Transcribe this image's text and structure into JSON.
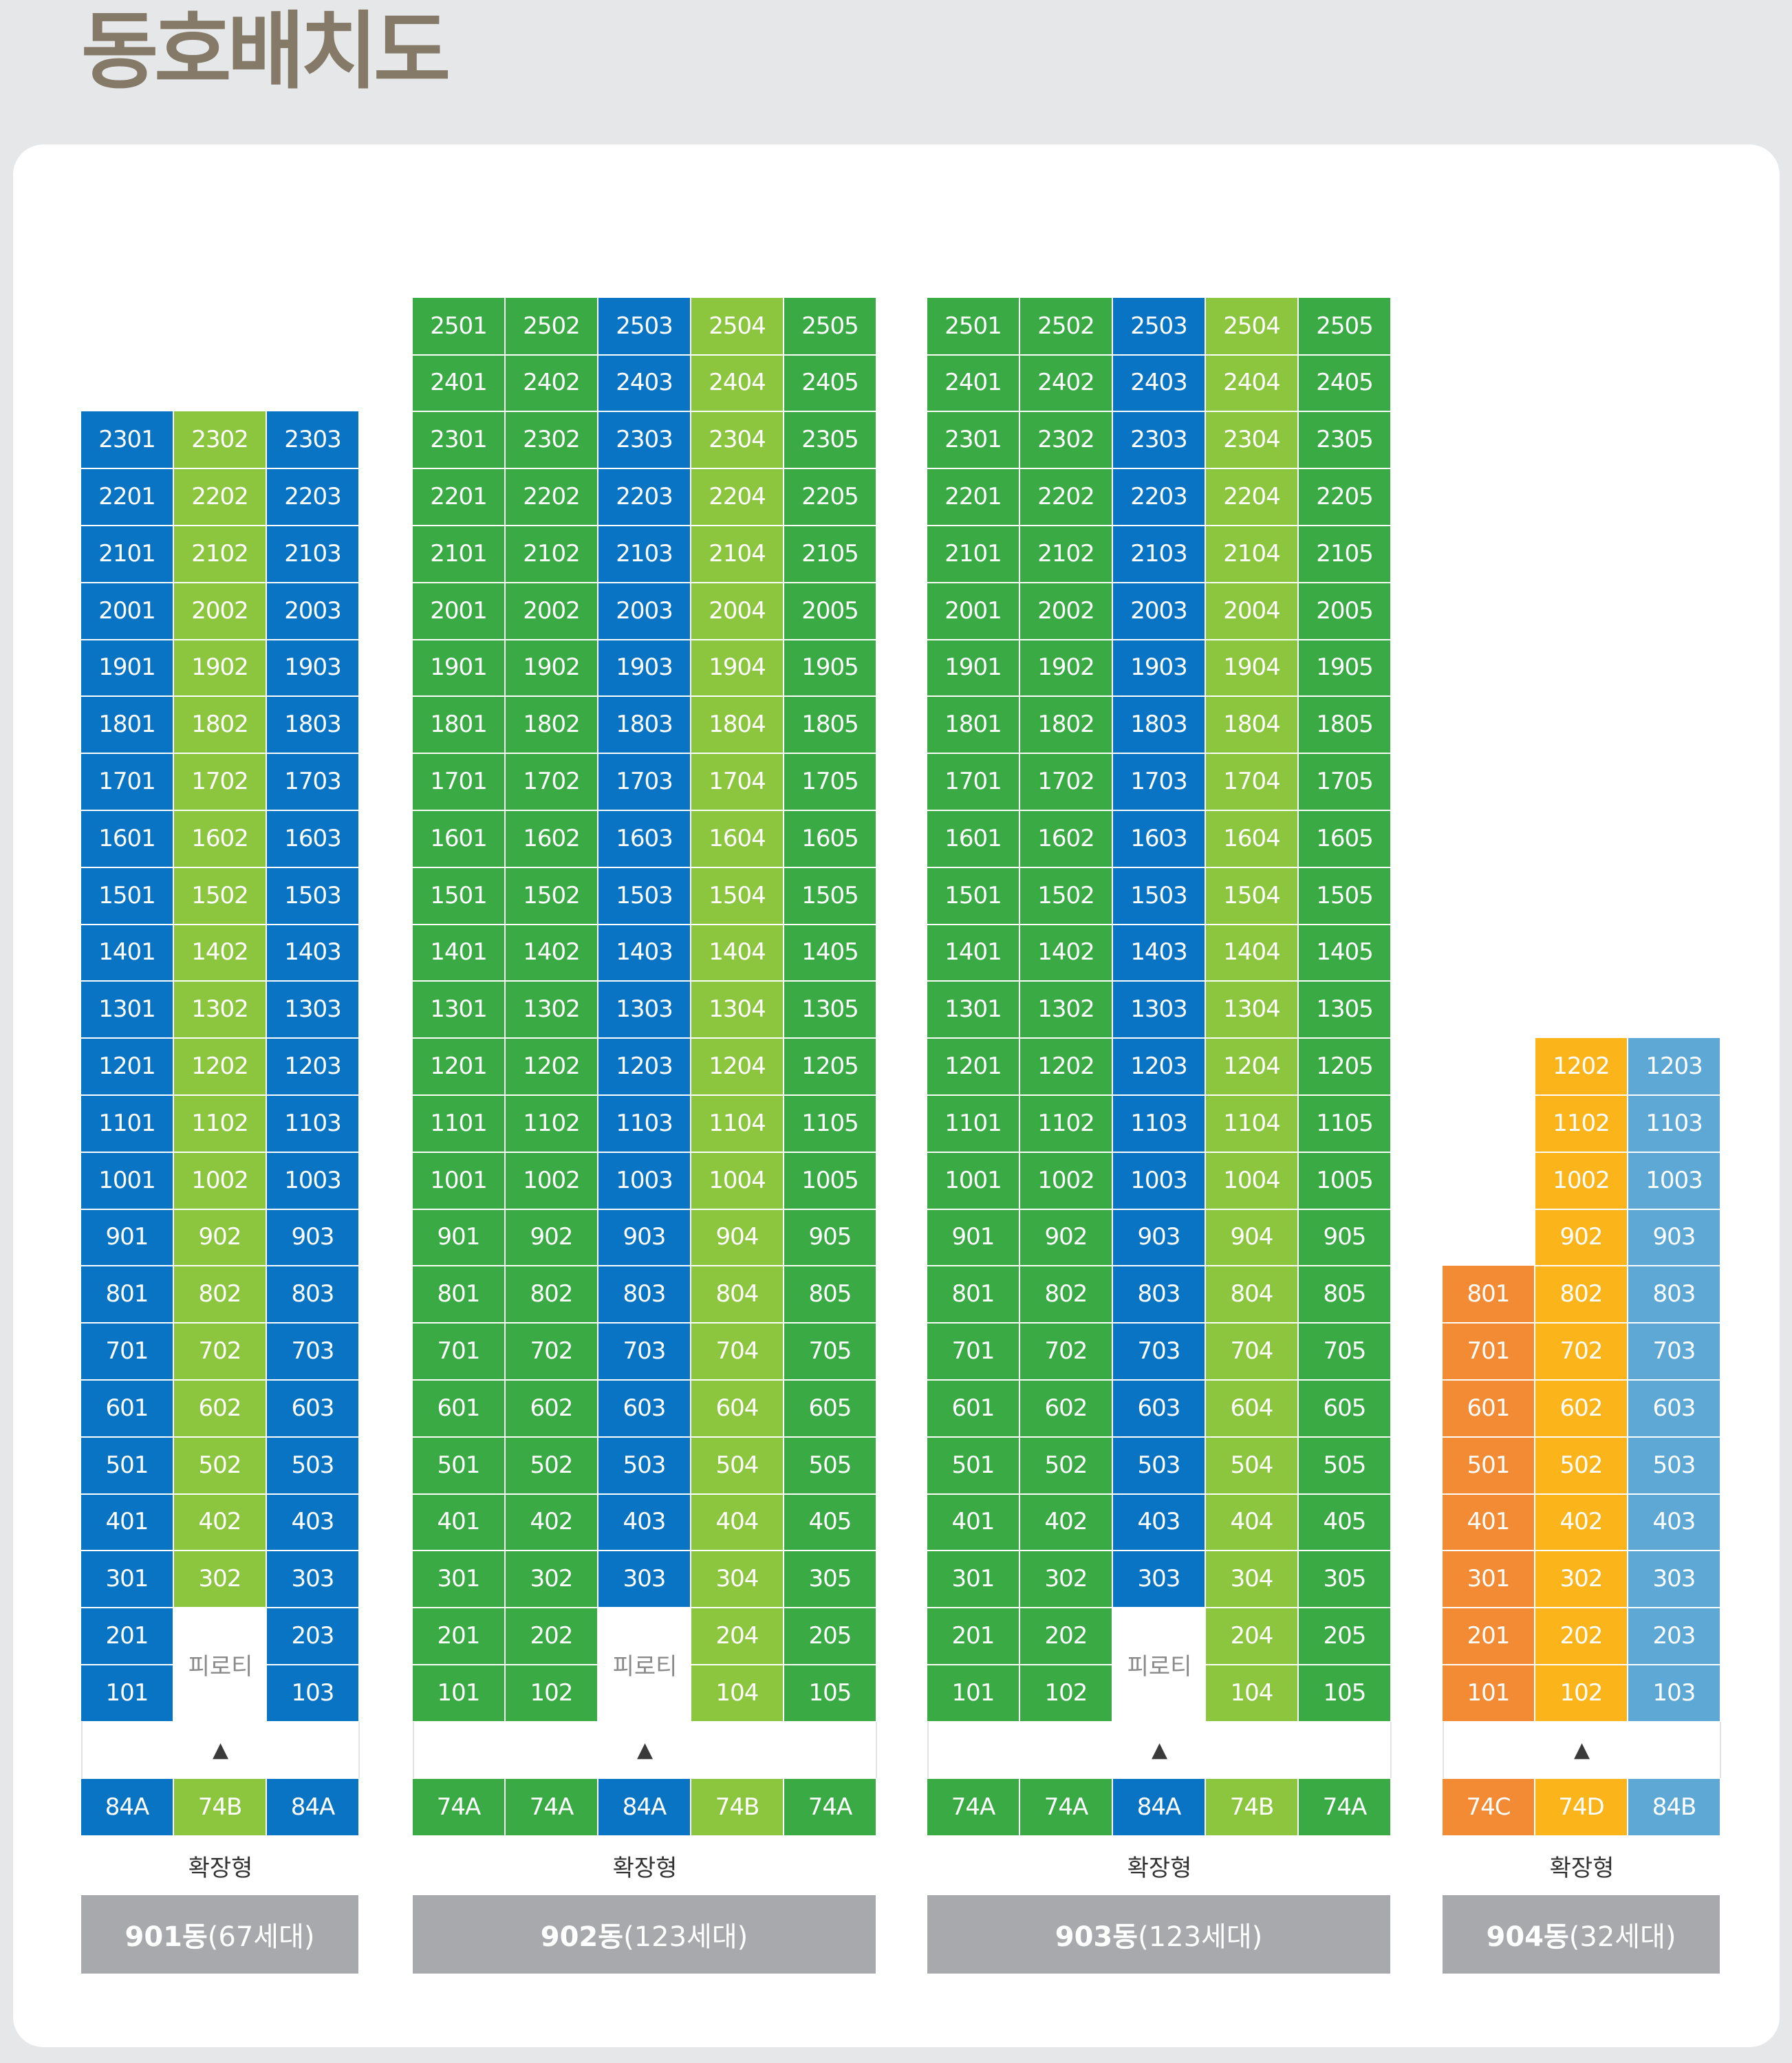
{
  "title": "동호배치도",
  "colors": {
    "blue": "#0a74c4",
    "light_green": "#8cc63f",
    "green": "#3aaa45",
    "orange": "#f38b35",
    "yellow": "#fbb41a",
    "sky": "#5ea8d6"
  },
  "buildings": [
    {
      "name": "901동",
      "households": "(67세대)",
      "floors": 23,
      "columns": [
        {
          "unit_suffix": "01",
          "type": "84A",
          "color": "blue",
          "piloti": false
        },
        {
          "unit_suffix": "02",
          "type": "74B",
          "color": "light_green",
          "piloti": true,
          "piloti_floors": [
            1,
            2
          ]
        },
        {
          "unit_suffix": "03",
          "type": "84A",
          "color": "blue",
          "piloti": false
        }
      ],
      "piloti_label": "피로티",
      "entrance_marker": "▲",
      "expansion": "확장형"
    },
    {
      "name": "902동",
      "households": "(123세대)",
      "floors": 25,
      "columns": [
        {
          "unit_suffix": "01",
          "type": "74A",
          "color": "green",
          "piloti": false
        },
        {
          "unit_suffix": "02",
          "type": "74A",
          "color": "green",
          "piloti": false
        },
        {
          "unit_suffix": "03",
          "type": "84A",
          "color": "blue",
          "piloti": true,
          "piloti_floors": [
            1,
            2
          ]
        },
        {
          "unit_suffix": "04",
          "type": "74B",
          "color": "light_green",
          "piloti": false
        },
        {
          "unit_suffix": "05",
          "type": "74A",
          "color": "green",
          "piloti": false
        }
      ],
      "piloti_label": "피로티",
      "entrance_marker": "▲",
      "expansion": "확장형"
    },
    {
      "name": "903동",
      "households": "(123세대)",
      "floors": 25,
      "columns": [
        {
          "unit_suffix": "01",
          "type": "74A",
          "color": "green",
          "piloti": false
        },
        {
          "unit_suffix": "02",
          "type": "74A",
          "color": "green",
          "piloti": false
        },
        {
          "unit_suffix": "03",
          "type": "84A",
          "color": "blue",
          "piloti": true,
          "piloti_floors": [
            1,
            2
          ]
        },
        {
          "unit_suffix": "04",
          "type": "74B",
          "color": "light_green",
          "piloti": false
        },
        {
          "unit_suffix": "05",
          "type": "74A",
          "color": "green",
          "piloti": false
        }
      ],
      "piloti_label": "피로티",
      "entrance_marker": "▲",
      "expansion": "확장형"
    },
    {
      "name": "904동",
      "households": "(32세대)",
      "floors": 12,
      "columns": [
        {
          "unit_suffix": "01",
          "type": "74C",
          "color": "orange",
          "piloti": false,
          "max_floor": 8
        },
        {
          "unit_suffix": "02",
          "type": "74D",
          "color": "yellow",
          "piloti": false
        },
        {
          "unit_suffix": "03",
          "type": "84B",
          "color": "sky",
          "piloti": false
        }
      ],
      "piloti_label": "",
      "entrance_marker": "▲",
      "expansion": "확장형"
    }
  ]
}
